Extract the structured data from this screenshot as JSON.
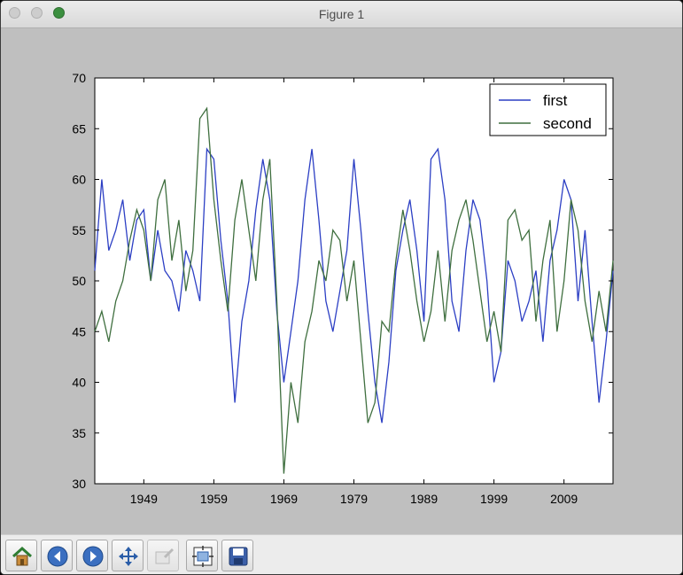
{
  "window": {
    "title": "Figure 1"
  },
  "toolbar": {
    "buttons": [
      {
        "icon": "home-icon"
      },
      {
        "icon": "back-icon"
      },
      {
        "icon": "forward-icon"
      },
      {
        "icon": "pan-icon"
      },
      {
        "icon": "zoom-icon"
      },
      {
        "icon": "subplots-icon"
      },
      {
        "icon": "save-icon"
      }
    ]
  },
  "chart_data": {
    "type": "line",
    "xlim": [
      1942,
      2016
    ],
    "ylim": [
      30,
      70
    ],
    "x_ticks": [
      1949,
      1959,
      1969,
      1979,
      1989,
      1999,
      2009
    ],
    "y_ticks": [
      30,
      35,
      40,
      45,
      50,
      55,
      60,
      65,
      70
    ],
    "legend_position": "top-right",
    "grid": false,
    "x": [
      1942,
      1943,
      1944,
      1945,
      1946,
      1947,
      1948,
      1949,
      1950,
      1951,
      1952,
      1953,
      1954,
      1955,
      1956,
      1957,
      1958,
      1959,
      1960,
      1961,
      1962,
      1963,
      1964,
      1965,
      1966,
      1967,
      1968,
      1969,
      1970,
      1971,
      1972,
      1973,
      1974,
      1975,
      1976,
      1977,
      1978,
      1979,
      1980,
      1981,
      1982,
      1983,
      1984,
      1985,
      1986,
      1987,
      1988,
      1989,
      1990,
      1991,
      1992,
      1993,
      1994,
      1995,
      1996,
      1997,
      1998,
      1999,
      2000,
      2001,
      2002,
      2003,
      2004,
      2005,
      2006,
      2007,
      2008,
      2009,
      2010,
      2011,
      2012,
      2013,
      2014,
      2015,
      2016
    ],
    "series": [
      {
        "name": "first",
        "color": "#2c3fc4",
        "values": [
          51,
          60,
          53,
          55,
          58,
          52,
          56,
          57,
          50,
          55,
          51,
          50,
          47,
          53,
          51,
          48,
          63,
          62,
          54,
          48,
          38,
          46,
          50,
          57,
          62,
          58,
          47,
          40,
          45,
          50,
          58,
          63,
          56,
          48,
          45,
          49,
          53,
          62,
          55,
          47,
          40,
          36,
          42,
          51,
          55,
          58,
          53,
          46,
          62,
          63,
          58,
          48,
          45,
          53,
          58,
          56,
          50,
          40,
          43,
          52,
          50,
          46,
          48,
          51,
          44,
          52,
          55,
          60,
          58,
          48,
          55,
          46,
          38,
          44,
          51
        ]
      },
      {
        "name": "second",
        "color": "#3f6f3f",
        "values": [
          45,
          47,
          44,
          48,
          50,
          54,
          57,
          55,
          50,
          58,
          60,
          52,
          56,
          49,
          53,
          66,
          67,
          58,
          52,
          47,
          56,
          60,
          55,
          50,
          58,
          62,
          48,
          31,
          40,
          36,
          44,
          47,
          52,
          50,
          55,
          54,
          48,
          52,
          44,
          36,
          38,
          46,
          45,
          52,
          57,
          53,
          48,
          44,
          47,
          53,
          46,
          53,
          56,
          58,
          54,
          49,
          44,
          47,
          43,
          56,
          57,
          54,
          55,
          46,
          52,
          56,
          45,
          50,
          58,
          55,
          48,
          44,
          49,
          45,
          52
        ]
      }
    ]
  }
}
